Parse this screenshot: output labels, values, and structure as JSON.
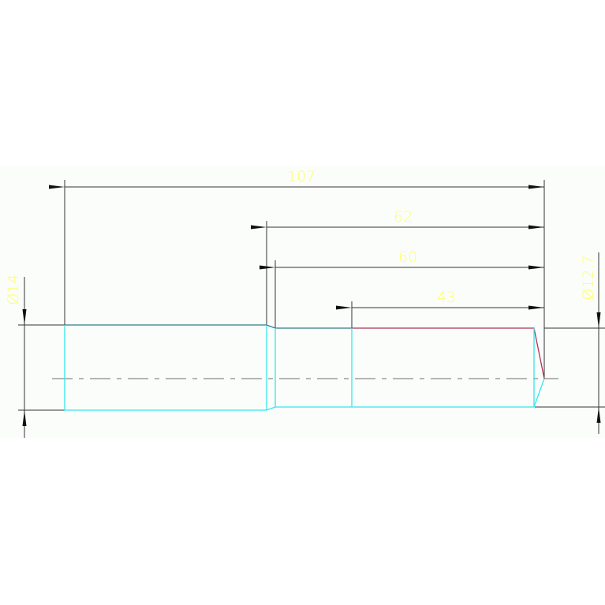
{
  "drawing": {
    "dimensions": {
      "overall_length": "107",
      "length_62": "62",
      "length_60": "60",
      "length_43": "43",
      "diameter_left": "Ø14",
      "diameter_right": "Ø12.7"
    },
    "colors": {
      "background": "#fbfdfb",
      "dimension_lines": "#222222",
      "dimension_text": "#ffff66",
      "outline_cyan": "#33e6ee",
      "outline_teal": "#2a7f86",
      "outline_crimson": "#b0305a",
      "centerline": "#8a8a8a"
    }
  }
}
